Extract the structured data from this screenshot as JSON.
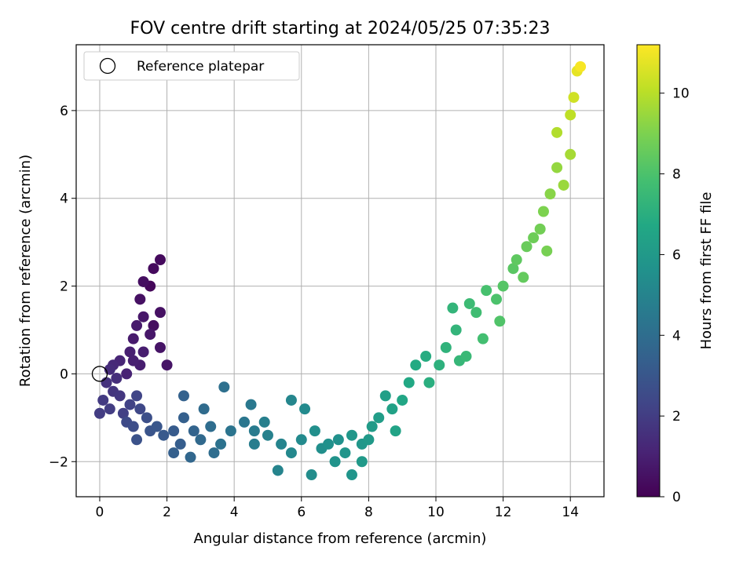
{
  "chart_data": {
    "type": "scatter",
    "title": "FOV centre drift starting at 2024/05/25 07:35:23",
    "xlabel": "Angular distance from reference (arcmin)",
    "ylabel": "Rotation from reference (arcmin)",
    "xlim": [
      -0.7,
      15
    ],
    "ylim": [
      -2.8,
      7.5
    ],
    "xticks": [
      0,
      2,
      4,
      6,
      8,
      10,
      12,
      14
    ],
    "yticks": [
      -2,
      0,
      2,
      4,
      6
    ],
    "grid": true,
    "legend": {
      "position": "top-left",
      "entries": [
        "Reference platepar"
      ]
    },
    "reference_point": {
      "x": 0,
      "y": 0
    },
    "colorbar": {
      "label": "Hours from first FF file",
      "colormap": "viridis",
      "range": [
        0,
        11.2
      ],
      "ticks": [
        0,
        2,
        4,
        6,
        8,
        10
      ]
    },
    "series": [
      {
        "colored_by": "hours",
        "points": [
          {
            "x": 1.5,
            "y": 2.0,
            "hours": 0.2
          },
          {
            "x": 1.6,
            "y": 2.4,
            "hours": 0.3
          },
          {
            "x": 1.8,
            "y": 2.6,
            "hours": 0.3
          },
          {
            "x": 1.3,
            "y": 2.1,
            "hours": 0.4
          },
          {
            "x": 1.6,
            "y": 1.1,
            "hours": 0.4
          },
          {
            "x": 1.8,
            "y": 1.4,
            "hours": 0.5
          },
          {
            "x": 1.2,
            "y": 1.7,
            "hours": 0.5
          },
          {
            "x": 2.0,
            "y": 0.2,
            "hours": 0.6
          },
          {
            "x": 1.8,
            "y": 0.6,
            "hours": 0.6
          },
          {
            "x": 1.5,
            "y": 0.9,
            "hours": 0.7
          },
          {
            "x": 1.3,
            "y": 1.3,
            "hours": 0.7
          },
          {
            "x": 1.1,
            "y": 1.1,
            "hours": 0.8
          },
          {
            "x": 1.0,
            "y": 0.8,
            "hours": 0.8
          },
          {
            "x": 1.3,
            "y": 0.5,
            "hours": 0.9
          },
          {
            "x": 1.2,
            "y": 0.2,
            "hours": 0.9
          },
          {
            "x": 0.9,
            "y": 0.5,
            "hours": 1.0
          },
          {
            "x": 1.0,
            "y": 0.3,
            "hours": 1.0
          },
          {
            "x": 0.8,
            "y": 0.0,
            "hours": 1.1
          },
          {
            "x": 0.6,
            "y": 0.3,
            "hours": 1.2
          },
          {
            "x": 0.4,
            "y": 0.2,
            "hours": 1.3
          },
          {
            "x": 0.3,
            "y": 0.1,
            "hours": 1.4
          },
          {
            "x": 0.5,
            "y": -0.1,
            "hours": 1.5
          },
          {
            "x": 0.2,
            "y": -0.2,
            "hours": 1.6
          },
          {
            "x": 0.4,
            "y": -0.4,
            "hours": 1.7
          },
          {
            "x": 0.6,
            "y": -0.5,
            "hours": 1.8
          },
          {
            "x": 0.1,
            "y": -0.6,
            "hours": 1.9
          },
          {
            "x": 0.3,
            "y": -0.8,
            "hours": 2.0
          },
          {
            "x": 0.0,
            "y": -0.9,
            "hours": 2.0
          },
          {
            "x": 0.7,
            "y": -0.9,
            "hours": 2.1
          },
          {
            "x": 0.9,
            "y": -0.7,
            "hours": 2.2
          },
          {
            "x": 1.1,
            "y": -0.5,
            "hours": 2.3
          },
          {
            "x": 1.2,
            "y": -0.8,
            "hours": 2.4
          },
          {
            "x": 0.8,
            "y": -1.1,
            "hours": 2.5
          },
          {
            "x": 1.0,
            "y": -1.2,
            "hours": 2.6
          },
          {
            "x": 1.4,
            "y": -1.0,
            "hours": 2.7
          },
          {
            "x": 1.1,
            "y": -1.5,
            "hours": 2.8
          },
          {
            "x": 1.5,
            "y": -1.3,
            "hours": 2.9
          },
          {
            "x": 1.7,
            "y": -1.2,
            "hours": 3.0
          },
          {
            "x": 1.9,
            "y": -1.4,
            "hours": 3.1
          },
          {
            "x": 2.2,
            "y": -1.3,
            "hours": 3.2
          },
          {
            "x": 2.4,
            "y": -1.6,
            "hours": 3.3
          },
          {
            "x": 2.2,
            "y": -1.8,
            "hours": 3.4
          },
          {
            "x": 2.5,
            "y": -1.0,
            "hours": 3.4
          },
          {
            "x": 2.5,
            "y": -0.5,
            "hours": 3.5
          },
          {
            "x": 2.8,
            "y": -1.3,
            "hours": 3.6
          },
          {
            "x": 2.7,
            "y": -1.9,
            "hours": 3.7
          },
          {
            "x": 3.0,
            "y": -1.5,
            "hours": 3.8
          },
          {
            "x": 3.1,
            "y": -0.8,
            "hours": 3.9
          },
          {
            "x": 3.3,
            "y": -1.2,
            "hours": 4.0
          },
          {
            "x": 3.4,
            "y": -1.8,
            "hours": 4.0
          },
          {
            "x": 3.7,
            "y": -0.3,
            "hours": 4.1
          },
          {
            "x": 3.6,
            "y": -1.6,
            "hours": 4.2
          },
          {
            "x": 3.9,
            "y": -1.3,
            "hours": 4.3
          },
          {
            "x": 4.3,
            "y": -1.1,
            "hours": 4.4
          },
          {
            "x": 4.5,
            "y": -0.7,
            "hours": 4.5
          },
          {
            "x": 4.6,
            "y": -1.3,
            "hours": 4.6
          },
          {
            "x": 4.6,
            "y": -1.6,
            "hours": 4.7
          },
          {
            "x": 4.9,
            "y": -1.1,
            "hours": 4.8
          },
          {
            "x": 5.0,
            "y": -1.4,
            "hours": 4.9
          },
          {
            "x": 5.3,
            "y": -2.2,
            "hours": 5.0
          },
          {
            "x": 5.4,
            "y": -1.6,
            "hours": 5.0
          },
          {
            "x": 5.7,
            "y": -0.6,
            "hours": 5.1
          },
          {
            "x": 5.7,
            "y": -1.8,
            "hours": 5.2
          },
          {
            "x": 6.0,
            "y": -1.5,
            "hours": 5.3
          },
          {
            "x": 6.1,
            "y": -0.8,
            "hours": 5.3
          },
          {
            "x": 6.3,
            "y": -2.3,
            "hours": 5.4
          },
          {
            "x": 6.4,
            "y": -1.3,
            "hours": 5.5
          },
          {
            "x": 6.6,
            "y": -1.7,
            "hours": 5.5
          },
          {
            "x": 6.8,
            "y": -1.6,
            "hours": 5.6
          },
          {
            "x": 7.1,
            "y": -1.5,
            "hours": 5.6
          },
          {
            "x": 7.0,
            "y": -2.0,
            "hours": 5.7
          },
          {
            "x": 7.3,
            "y": -1.8,
            "hours": 5.8
          },
          {
            "x": 7.5,
            "y": -2.3,
            "hours": 5.8
          },
          {
            "x": 7.5,
            "y": -1.4,
            "hours": 5.9
          },
          {
            "x": 7.8,
            "y": -1.6,
            "hours": 5.9
          },
          {
            "x": 7.8,
            "y": -2.0,
            "hours": 6.0
          },
          {
            "x": 8.0,
            "y": -1.5,
            "hours": 6.0
          },
          {
            "x": 8.1,
            "y": -1.2,
            "hours": 6.1
          },
          {
            "x": 8.3,
            "y": -1.0,
            "hours": 6.2
          },
          {
            "x": 8.5,
            "y": -0.5,
            "hours": 6.3
          },
          {
            "x": 8.7,
            "y": -0.8,
            "hours": 6.4
          },
          {
            "x": 8.8,
            "y": -1.3,
            "hours": 6.5
          },
          {
            "x": 9.0,
            "y": -0.6,
            "hours": 6.6
          },
          {
            "x": 9.2,
            "y": -0.2,
            "hours": 6.7
          },
          {
            "x": 9.4,
            "y": 0.2,
            "hours": 6.8
          },
          {
            "x": 9.7,
            "y": 0.4,
            "hours": 6.9
          },
          {
            "x": 9.8,
            "y": -0.2,
            "hours": 7.0
          },
          {
            "x": 10.1,
            "y": 0.2,
            "hours": 7.1
          },
          {
            "x": 10.3,
            "y": 0.6,
            "hours": 7.2
          },
          {
            "x": 10.5,
            "y": 1.5,
            "hours": 7.3
          },
          {
            "x": 10.6,
            "y": 1.0,
            "hours": 7.3
          },
          {
            "x": 10.7,
            "y": 0.3,
            "hours": 7.4
          },
          {
            "x": 10.9,
            "y": 0.4,
            "hours": 7.5
          },
          {
            "x": 11.0,
            "y": 1.6,
            "hours": 7.6
          },
          {
            "x": 11.2,
            "y": 1.4,
            "hours": 7.7
          },
          {
            "x": 11.4,
            "y": 0.8,
            "hours": 7.8
          },
          {
            "x": 11.5,
            "y": 1.9,
            "hours": 7.9
          },
          {
            "x": 11.8,
            "y": 1.7,
            "hours": 8.0
          },
          {
            "x": 11.9,
            "y": 1.2,
            "hours": 8.1
          },
          {
            "x": 12.0,
            "y": 2.0,
            "hours": 8.2
          },
          {
            "x": 12.3,
            "y": 2.4,
            "hours": 8.3
          },
          {
            "x": 12.4,
            "y": 2.6,
            "hours": 8.4
          },
          {
            "x": 12.6,
            "y": 2.2,
            "hours": 8.5
          },
          {
            "x": 12.7,
            "y": 2.9,
            "hours": 8.6
          },
          {
            "x": 12.9,
            "y": 3.1,
            "hours": 8.7
          },
          {
            "x": 13.1,
            "y": 3.3,
            "hours": 8.8
          },
          {
            "x": 13.3,
            "y": 2.8,
            "hours": 8.9
          },
          {
            "x": 13.2,
            "y": 3.7,
            "hours": 9.0
          },
          {
            "x": 13.4,
            "y": 4.1,
            "hours": 9.2
          },
          {
            "x": 13.6,
            "y": 4.7,
            "hours": 9.4
          },
          {
            "x": 13.8,
            "y": 4.3,
            "hours": 9.5
          },
          {
            "x": 14.0,
            "y": 5.0,
            "hours": 9.7
          },
          {
            "x": 13.6,
            "y": 5.5,
            "hours": 9.9
          },
          {
            "x": 14.0,
            "y": 5.9,
            "hours": 10.1
          },
          {
            "x": 14.1,
            "y": 6.3,
            "hours": 10.4
          },
          {
            "x": 14.2,
            "y": 6.9,
            "hours": 10.8
          },
          {
            "x": 14.3,
            "y": 7.0,
            "hours": 11.1
          }
        ]
      }
    ]
  }
}
